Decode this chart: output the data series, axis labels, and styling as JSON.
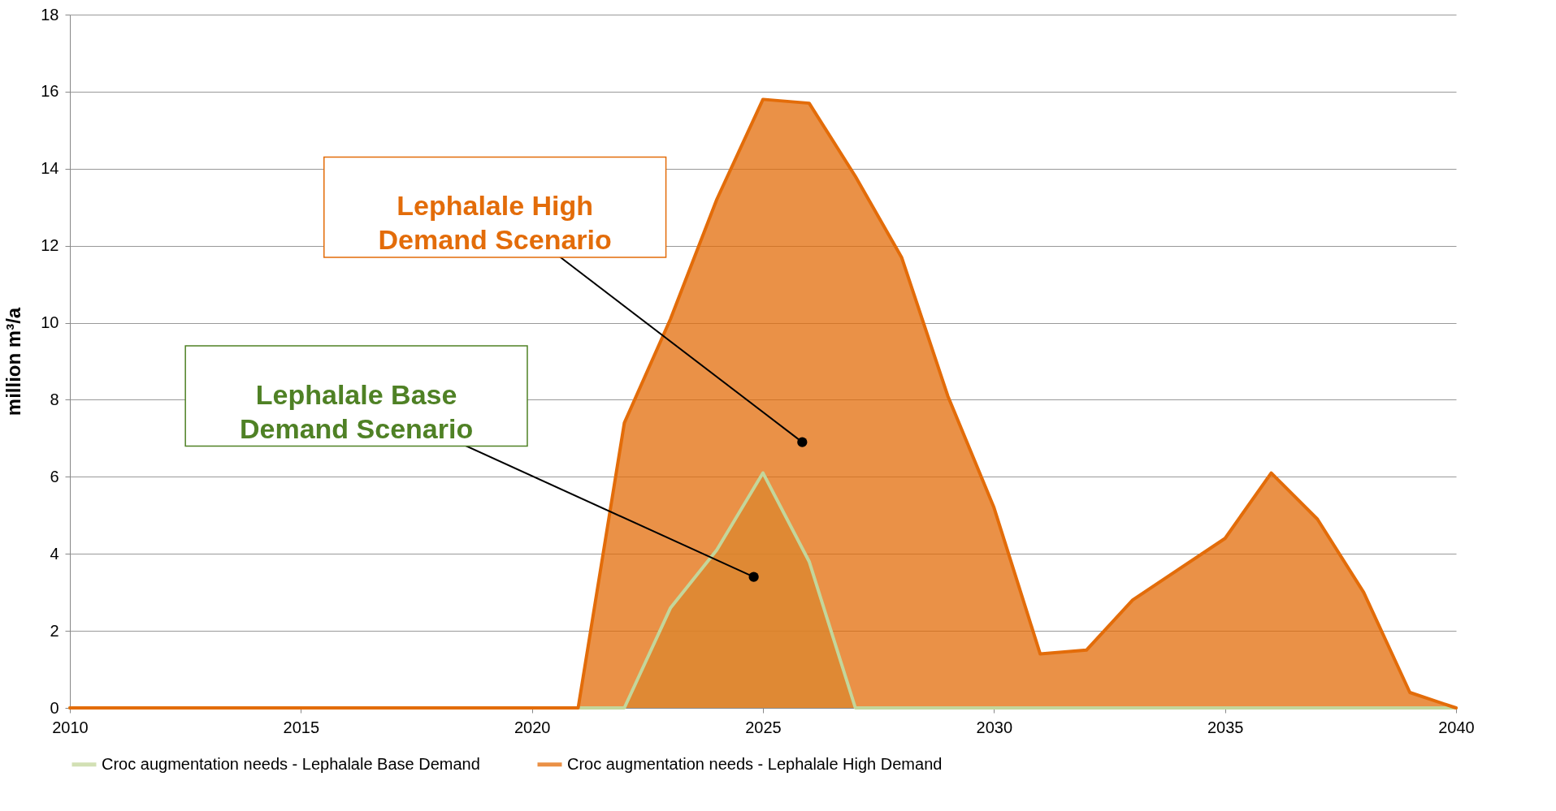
{
  "chart_data": {
    "type": "area",
    "ylabel": "million m³/a",
    "x": [
      2010,
      2011,
      2012,
      2013,
      2014,
      2015,
      2016,
      2017,
      2018,
      2019,
      2020,
      2021,
      2022,
      2023,
      2024,
      2025,
      2026,
      2027,
      2028,
      2029,
      2030,
      2031,
      2032,
      2033,
      2034,
      2035,
      2036,
      2037,
      2038,
      2039,
      2040
    ],
    "series": [
      {
        "name": "Croc augmentation needs - Lephalale Base Demand",
        "color": "#c3d69b",
        "values": [
          0,
          0,
          0,
          0,
          0,
          0,
          0,
          0,
          0,
          0,
          0,
          0,
          0,
          2.6,
          4.1,
          6.1,
          3.8,
          0,
          0,
          0,
          0,
          0,
          0,
          0,
          0,
          0,
          0,
          0,
          0,
          0,
          0
        ]
      },
      {
        "name": "Croc augmentation needs - Lephalale High Demand",
        "color": "#e36c09",
        "values": [
          0,
          0,
          0,
          0,
          0,
          0,
          0,
          0,
          0,
          0,
          0,
          0,
          7.4,
          10.1,
          13.2,
          15.8,
          15.7,
          13.8,
          11.7,
          8.1,
          5.2,
          1.4,
          1.5,
          2.8,
          3.6,
          4.4,
          6.1,
          4.9,
          3.0,
          0.4,
          0
        ]
      }
    ],
    "annotations": [
      {
        "text": "Lephalale Base Demand Scenario",
        "x": 2024.8,
        "y": 3.4
      },
      {
        "text": "Lephalale High Demand Scenario",
        "x": 2025.85,
        "y": 6.9
      }
    ],
    "xlim": [
      2010,
      2040
    ],
    "xticks": [
      2010,
      2015,
      2020,
      2025,
      2030,
      2035,
      2040
    ],
    "ylim": [
      0,
      18
    ],
    "yticks": [
      0,
      2,
      4,
      6,
      8,
      10,
      12,
      14,
      16,
      18
    ],
    "grid": "y",
    "legend": "bottom"
  }
}
